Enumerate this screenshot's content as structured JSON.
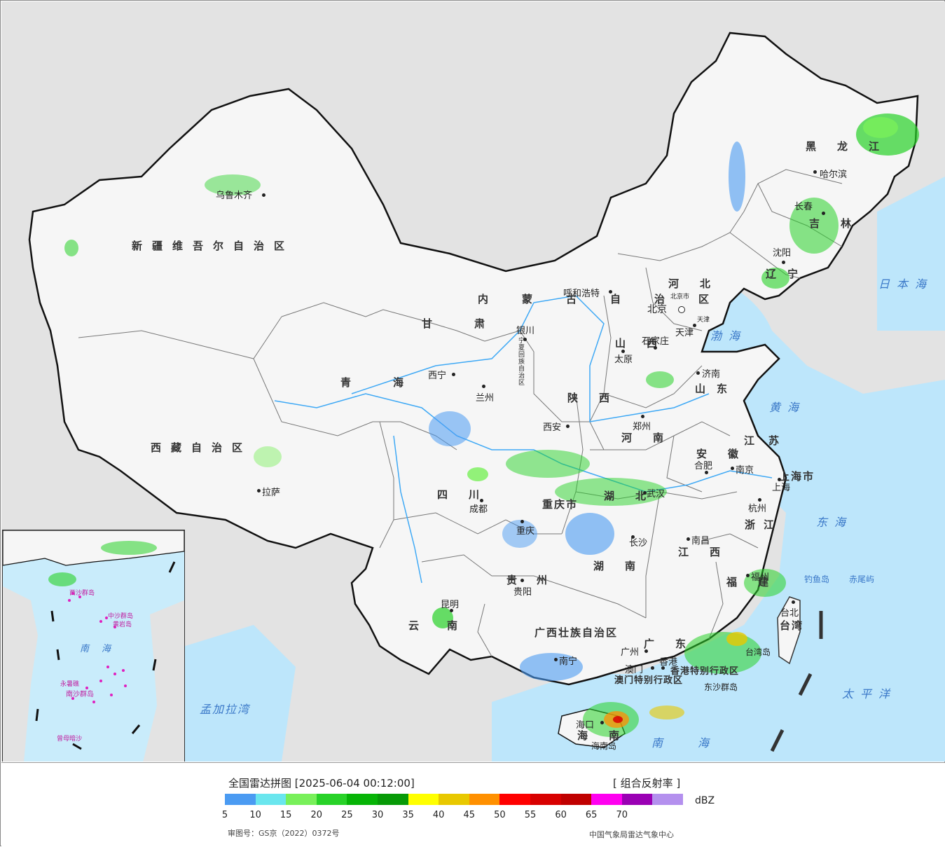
{
  "map": {
    "provinces": [
      {
        "name": "新疆维吾尔自治区"
      },
      {
        "name": "西藏自治区"
      },
      {
        "name": "青海"
      },
      {
        "name": "甘肃"
      },
      {
        "name": "内蒙古自治区"
      },
      {
        "name": "四川"
      },
      {
        "name": "云南"
      },
      {
        "name": "陕西"
      },
      {
        "name": "山西"
      },
      {
        "name": "河北"
      },
      {
        "name": "河南"
      },
      {
        "name": "湖北"
      },
      {
        "name": "湖南"
      },
      {
        "name": "贵州"
      },
      {
        "name": "重庆市"
      },
      {
        "name": "广西壮族自治区"
      },
      {
        "name": "广东"
      },
      {
        "name": "海南"
      },
      {
        "name": "江西"
      },
      {
        "name": "福建"
      },
      {
        "name": "浙江"
      },
      {
        "name": "安徽"
      },
      {
        "name": "江苏"
      },
      {
        "name": "山东"
      },
      {
        "name": "辽宁"
      },
      {
        "name": "吉林"
      },
      {
        "name": "黑龙江"
      },
      {
        "name": "台湾"
      },
      {
        "name": "上海市"
      },
      {
        "name": "宁夏回族自治区"
      },
      {
        "name": "北京市"
      },
      {
        "name": "天津"
      },
      {
        "name": "香港特别行政区"
      },
      {
        "name": "澳门特别行政区"
      }
    ],
    "cities": [
      {
        "name": "乌鲁木齐"
      },
      {
        "name": "拉萨"
      },
      {
        "name": "西宁"
      },
      {
        "name": "兰州"
      },
      {
        "name": "银川"
      },
      {
        "name": "呼和浩特"
      },
      {
        "name": "北京"
      },
      {
        "name": "天津"
      },
      {
        "name": "石家庄"
      },
      {
        "name": "太原"
      },
      {
        "name": "济南"
      },
      {
        "name": "郑州"
      },
      {
        "name": "西安"
      },
      {
        "name": "成都"
      },
      {
        "name": "重庆"
      },
      {
        "name": "贵阳"
      },
      {
        "name": "昆明"
      },
      {
        "name": "南宁"
      },
      {
        "name": "广州"
      },
      {
        "name": "澳门"
      },
      {
        "name": "香港"
      },
      {
        "name": "海口"
      },
      {
        "name": "长沙"
      },
      {
        "name": "武汉"
      },
      {
        "name": "南昌"
      },
      {
        "name": "福州"
      },
      {
        "name": "台北"
      },
      {
        "name": "杭州"
      },
      {
        "name": "上海"
      },
      {
        "name": "南京"
      },
      {
        "name": "合肥"
      },
      {
        "name": "沈阳"
      },
      {
        "name": "长春"
      },
      {
        "name": "哈尔滨"
      }
    ],
    "seas_and_islands": [
      {
        "name": "日本海"
      },
      {
        "name": "渤海"
      },
      {
        "name": "黄海"
      },
      {
        "name": "东海"
      },
      {
        "name": "太平洋"
      },
      {
        "name": "南海"
      },
      {
        "name": "孟加拉湾"
      },
      {
        "name": "钓鱼岛"
      },
      {
        "name": "赤尾屿"
      },
      {
        "name": "台湾岛"
      },
      {
        "name": "海南岛"
      },
      {
        "name": "东沙群岛"
      }
    ],
    "inset": {
      "labels": [
        {
          "name": "南海"
        },
        {
          "name": "西沙群岛"
        },
        {
          "name": "中沙群岛"
        },
        {
          "name": "黄岩岛"
        },
        {
          "name": "永暑礁"
        },
        {
          "name": "南沙群岛"
        },
        {
          "name": "曾母暗沙"
        }
      ]
    }
  },
  "legend": {
    "title": "全国雷达拼图 [2025-06-04 00:12:00]",
    "product": "[ 组合反射率 ]",
    "unit": "dBZ",
    "colors": [
      "#4b9bf2",
      "#6ae6ee",
      "#78f05a",
      "#28d228",
      "#06b406",
      "#079a07",
      "#ffff00",
      "#e8c800",
      "#ff9000",
      "#ff0000",
      "#d80000",
      "#c00000",
      "#ff00f0",
      "#9a00b4",
      "#b490ee"
    ],
    "ticks": [
      "5",
      "10",
      "15",
      "20",
      "25",
      "30",
      "35",
      "40",
      "45",
      "50",
      "55",
      "60",
      "65",
      "70"
    ],
    "approval": "审图号：GS京（2022）0372号",
    "organization": "中国气象局雷达气象中心"
  }
}
